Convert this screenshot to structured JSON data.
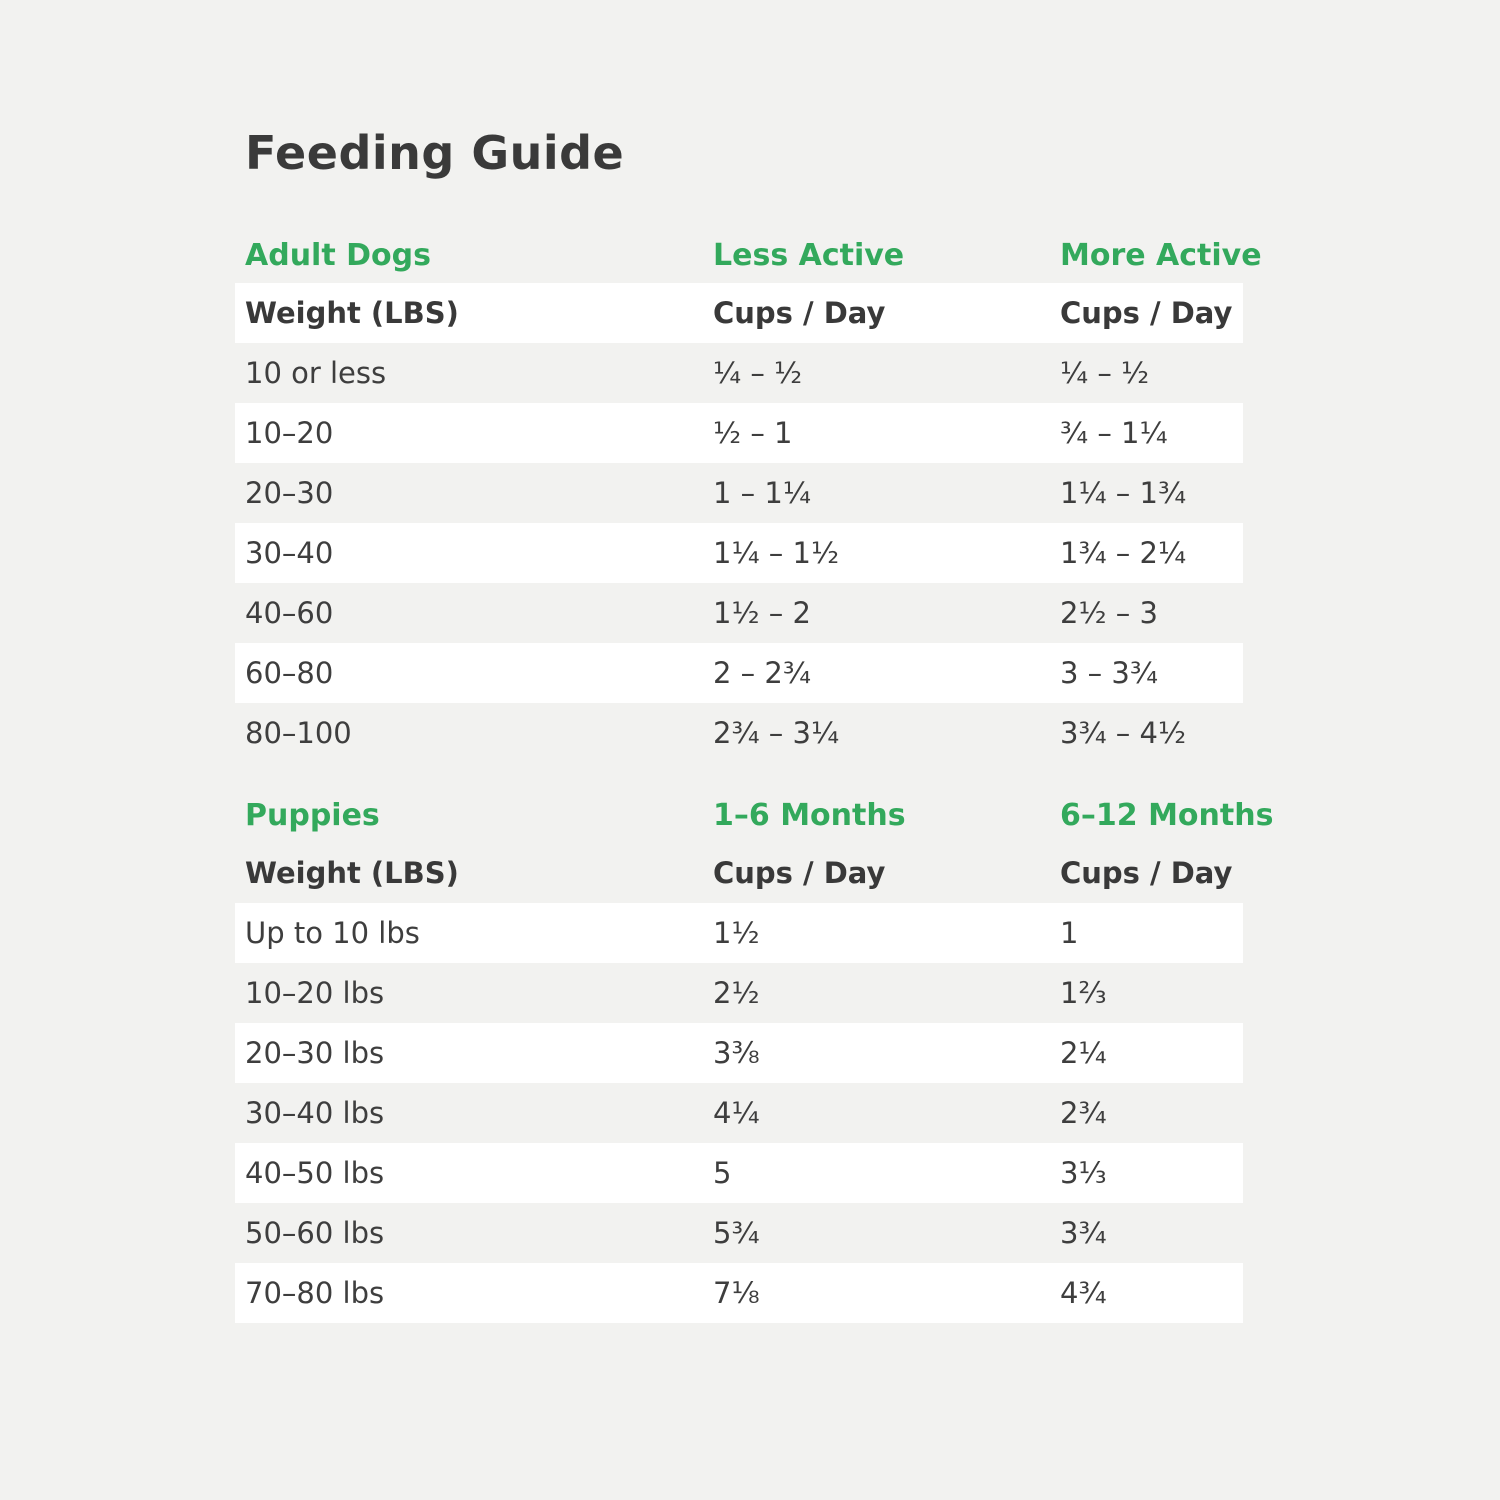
{
  "title": "Feeding Guide",
  "colors": {
    "background": "#f2f2f0",
    "row_highlight": "#ffffff",
    "accent_green": "#33a95c",
    "text_dark": "#3b3b3b"
  },
  "tables": [
    {
      "section": {
        "col1": "Adult Dogs",
        "col2": "Less Active",
        "col3": "More Active"
      },
      "header": {
        "col1": "Weight (LBS)",
        "col2": "Cups / Day",
        "col3": "Cups / Day"
      },
      "header_highlighted": true,
      "rows": [
        {
          "col1": "10 or less",
          "col2": "¼ – ½",
          "col3": "¼ – ½"
        },
        {
          "col1": "10–20",
          "col2": "½ – 1",
          "col3": "¾ – 1¼"
        },
        {
          "col1": "20–30",
          "col2": "1 – 1¼",
          "col3": "1¼ – 1¾"
        },
        {
          "col1": "30–40",
          "col2": "1¼ – 1½",
          "col3": "1¾ – 2¼"
        },
        {
          "col1": "40–60",
          "col2": "1½ – 2",
          "col3": "2½ – 3"
        },
        {
          "col1": "60–80",
          "col2": "2 – 2¾",
          "col3": "3 – 3¾"
        },
        {
          "col1": "80–100",
          "col2": "2¾ – 3¼",
          "col3": "3¾ – 4½"
        }
      ]
    },
    {
      "section": {
        "col1": "Puppies",
        "col2": "1–6 Months",
        "col3": "6–12 Months"
      },
      "header": {
        "col1": "Weight (LBS)",
        "col2": "Cups / Day",
        "col3": "Cups / Day"
      },
      "header_highlighted": false,
      "rows": [
        {
          "col1": "Up to 10 lbs",
          "col2": "1½",
          "col3": "1"
        },
        {
          "col1": "10–20 lbs",
          "col2": "2½",
          "col3": "1⅔"
        },
        {
          "col1": "20–30 lbs",
          "col2": "3⅜",
          "col3": "2¼"
        },
        {
          "col1": "30–40 lbs",
          "col2": "4¼",
          "col3": "2¾"
        },
        {
          "col1": "40–50 lbs",
          "col2": "5",
          "col3": "3⅓"
        },
        {
          "col1": "50–60 lbs",
          "col2": "5¾",
          "col3": "3¾"
        },
        {
          "col1": "70–80 lbs",
          "col2": "7⅛",
          "col3": "4¾"
        }
      ]
    }
  ]
}
